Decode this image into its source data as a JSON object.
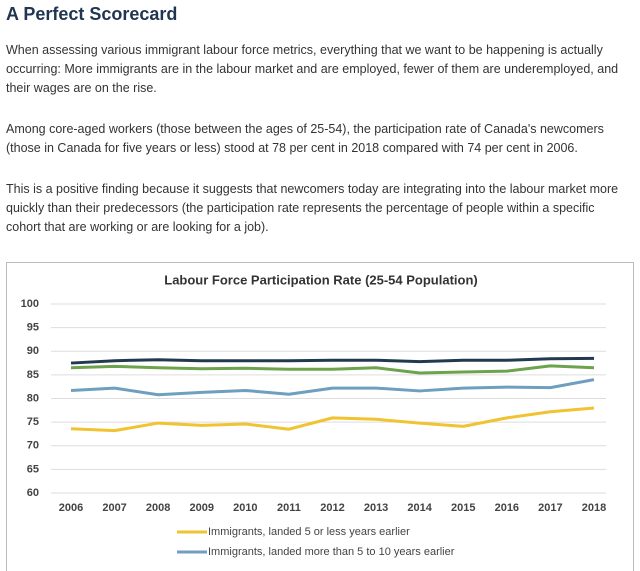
{
  "header": {
    "title": "A Perfect Scorecard"
  },
  "paragraphs": [
    "When assessing various immigrant labour force metrics, everything that we want to be happening is actually occurring: More immigrants are in the labour market and are employed, fewer of them are underemployed, and their wages are on the rise.",
    "Among core-aged workers (those between the ages of 25-54), the participation rate of Canada's newcomers (those in Canada for five years or less) stood at 78 per cent in 2018 compared with 74 per cent in 2006.",
    "This is a positive finding because it suggests that newcomers today are integrating into the labour market more quickly than their predecessors (the participation rate represents the percentage of people within a specific cohort that are working or are looking for a job)."
  ],
  "chart_data": {
    "type": "line",
    "title": "Labour Force Participation Rate (25-54 Population)",
    "categories": [
      "2006",
      "2007",
      "2008",
      "2009",
      "2010",
      "2011",
      "2012",
      "2013",
      "2014",
      "2015",
      "2016",
      "2017",
      "2018"
    ],
    "ylim": [
      60,
      100
    ],
    "yticks": [
      60,
      65,
      70,
      75,
      80,
      85,
      90,
      95,
      100
    ],
    "grid": true,
    "series": [
      {
        "color": "#223a4f",
        "values": [
          87.5,
          88,
          88.2,
          88,
          88,
          88,
          88.1,
          88.1,
          87.8,
          88.1,
          88.1,
          88.4,
          88.5
        ]
      },
      {
        "color": "#6da34d",
        "values": [
          86.5,
          86.8,
          86.5,
          86.3,
          86.4,
          86.2,
          86.2,
          86.5,
          85.4,
          85.6,
          85.8,
          86.9,
          86.5
        ]
      },
      {
        "name": "Immigrants, landed more than 5 to 10 years earlier",
        "color": "#6f9fbf",
        "values": [
          81.7,
          82.2,
          80.8,
          81.3,
          81.7,
          80.9,
          82.2,
          82.2,
          81.6,
          82.2,
          82.4,
          82.3,
          84
        ]
      },
      {
        "name": "Immigrants, landed 5 or less years earlier",
        "color": "#f0c330",
        "values": [
          73.6,
          73.2,
          74.8,
          74.3,
          74.6,
          73.5,
          75.9,
          75.6,
          74.8,
          74.1,
          75.9,
          77.2,
          78
        ]
      }
    ]
  }
}
